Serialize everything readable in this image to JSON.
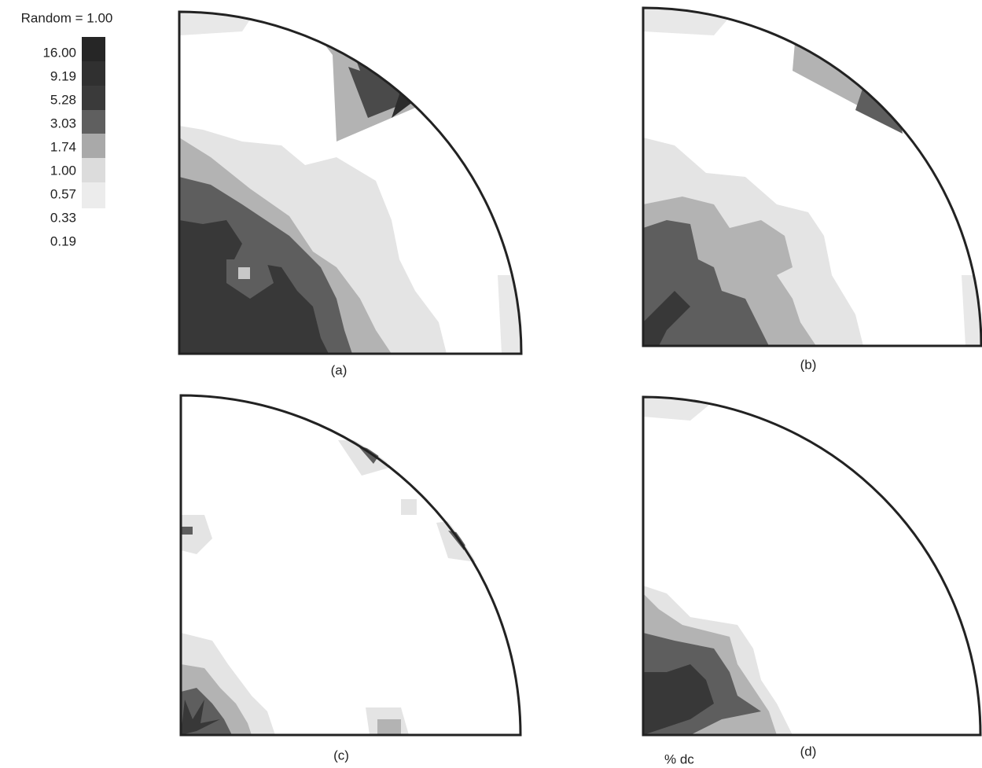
{
  "legend": {
    "title": "Random = 1.00",
    "levels": [
      "16.00",
      "9.19",
      "5.28",
      "3.03",
      "1.74",
      "1.00",
      "0.57",
      "0.33",
      "0.19"
    ]
  },
  "panels": [
    {
      "label": "(a)"
    },
    {
      "label": "(b)"
    },
    {
      "label": "(c)"
    },
    {
      "label": "(d)"
    }
  ],
  "footnote": "% dc"
}
